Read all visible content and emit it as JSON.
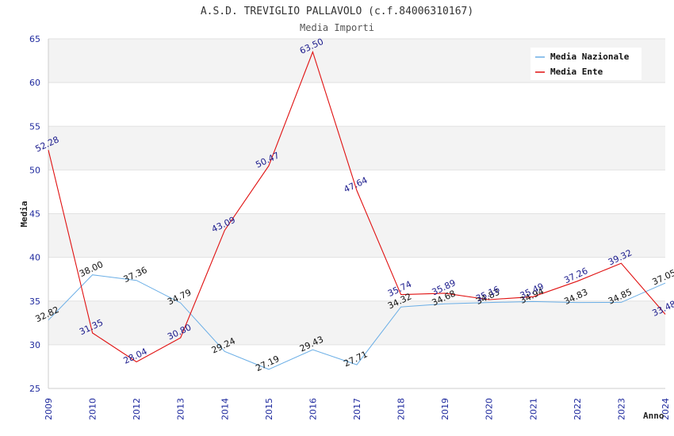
{
  "chart_data": {
    "type": "line",
    "title": "A.S.D. TREVIGLIO PALLAVOLO (c.f.84006310167)",
    "subtitle": "Media Importi",
    "xlabel": "Anno",
    "ylabel": "Media",
    "ylim": [
      25,
      65
    ],
    "y_ticks": [
      25,
      30,
      35,
      40,
      45,
      50,
      55,
      60,
      65
    ],
    "categories": [
      "2009",
      "2010",
      "2012",
      "2013",
      "2014",
      "2015",
      "2016",
      "2017",
      "2018",
      "2019",
      "2020",
      "2021",
      "2022",
      "2023",
      "2024"
    ],
    "legend_position": "top-right",
    "series": [
      {
        "name": "Media Nazionale",
        "color": "#6aaee6",
        "label_color": "#111111",
        "values": [
          32.82,
          38.0,
          37.36,
          34.79,
          29.24,
          27.19,
          29.43,
          27.71,
          34.32,
          34.68,
          34.83,
          34.94,
          34.83,
          34.85,
          37.05
        ],
        "labels": [
          "32.82",
          "38.00",
          "37.36",
          "34.79",
          "29.24",
          "27.19",
          "29.43",
          "27.71",
          "34.32",
          "34.68",
          "34.83",
          "34.94",
          "34.83",
          "34.85",
          "37.05"
        ]
      },
      {
        "name": "Media Ente",
        "color": "#e01010",
        "label_color": "#1a1a8c",
        "values": [
          52.28,
          31.35,
          28.04,
          30.8,
          43.09,
          50.47,
          63.5,
          47.64,
          35.74,
          35.89,
          35.16,
          35.49,
          37.26,
          39.32,
          33.48
        ],
        "labels": [
          "52.28",
          "31.35",
          "28.04",
          "30.80",
          "43.09",
          "50.47",
          "63.50",
          "47.64",
          "35.74",
          "35.89",
          "35.16",
          "35.49",
          "37.26",
          "39.32",
          "33.48"
        ]
      }
    ]
  }
}
